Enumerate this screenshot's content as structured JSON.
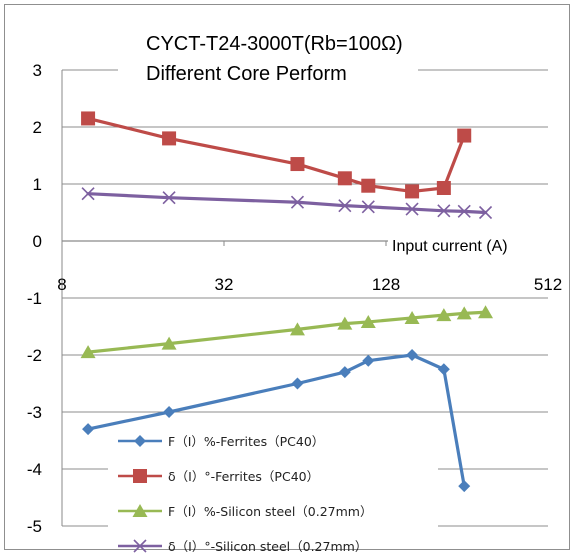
{
  "chart_data": {
    "type": "line",
    "title_lines": [
      "CYCT-T24-3000T(Rb=100Ω)",
      "Different Core Perform"
    ],
    "xlabel": "Input current (A)",
    "ylabel": "",
    "x_scale": "log2",
    "xlim": [
      8,
      512
    ],
    "ylim": [
      -5,
      3
    ],
    "x_ticks": [
      8,
      32,
      128,
      512
    ],
    "x_tick_labels": [
      "8",
      "32",
      "128",
      "512"
    ],
    "y_ticks": [
      -5,
      -4,
      -3,
      -2,
      -1,
      0,
      1,
      2,
      3
    ],
    "y_tick_labels": [
      "-5",
      "-4",
      "-3",
      "-2",
      "-1",
      "0",
      "1",
      "2",
      "3"
    ],
    "grid": true,
    "legend_position": "bottom-left",
    "series": [
      {
        "name": "F（I）%-Ferrites（PC40）",
        "color": "#4a7ebb",
        "marker": "diamond",
        "x": [
          10,
          20,
          60,
          90,
          110,
          160,
          210,
          250
        ],
        "y": [
          -3.3,
          -3.0,
          -2.5,
          -2.3,
          -2.1,
          -2.0,
          -2.25,
          -4.3
        ]
      },
      {
        "name": "δ（I）°-Ferrites（PC40）",
        "color": "#be4b48",
        "marker": "square",
        "x": [
          10,
          20,
          60,
          90,
          110,
          160,
          210,
          250
        ],
        "y": [
          2.15,
          1.8,
          1.35,
          1.1,
          0.97,
          0.87,
          0.93,
          1.85
        ]
      },
      {
        "name": "F（I）%-Silicon steel（0.27mm）",
        "color": "#98b954",
        "marker": "triangle",
        "x": [
          10,
          20,
          60,
          90,
          110,
          160,
          210,
          250,
          300
        ],
        "y": [
          -1.95,
          -1.8,
          -1.55,
          -1.45,
          -1.42,
          -1.35,
          -1.3,
          -1.27,
          -1.25
        ]
      },
      {
        "name": "δ（I）°-Silicon steel（0.27mm）",
        "color": "#7d60a0",
        "marker": "x",
        "x": [
          10,
          20,
          60,
          90,
          110,
          160,
          210,
          250,
          300
        ],
        "y": [
          0.83,
          0.76,
          0.68,
          0.62,
          0.6,
          0.56,
          0.53,
          0.52,
          0.5
        ]
      }
    ]
  }
}
